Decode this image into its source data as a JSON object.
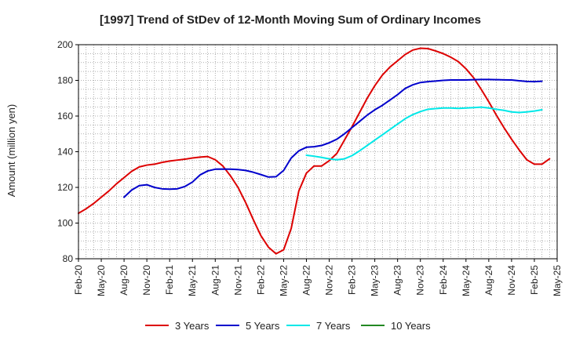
{
  "chart_data": {
    "type": "line",
    "title": "[1997]  Trend of StDev of 12-Month Moving Sum of Ordinary Incomes",
    "xlabel": "",
    "ylabel": "Amount (million yen)",
    "ylim": [
      80,
      200
    ],
    "yticks": [
      80,
      100,
      120,
      140,
      160,
      180,
      200
    ],
    "x_tick_labels": [
      "Feb-20",
      "May-20",
      "Aug-20",
      "Nov-20",
      "Feb-21",
      "May-21",
      "Aug-21",
      "Nov-21",
      "Feb-22",
      "May-22",
      "Aug-22",
      "Nov-22",
      "Feb-23",
      "May-23",
      "Aug-23",
      "Nov-23",
      "Feb-24",
      "May-24",
      "Aug-24",
      "Nov-24",
      "Feb-25",
      "May-25"
    ],
    "x_start": "Feb-20",
    "x_months": 63,
    "grid": true,
    "legend_position": "bottom",
    "series": [
      {
        "name": "3 Years",
        "color": "#dd0000",
        "start_index": 0,
        "values": [
          105.5,
          108,
          111,
          114.5,
          118,
          122,
          125.5,
          129,
          131.5,
          132.5,
          133,
          134,
          134.8,
          135.3,
          135.8,
          136.5,
          137,
          137.3,
          135.5,
          132,
          126.5,
          120,
          111.5,
          102,
          93,
          86.5,
          82.8,
          85,
          97,
          118,
          128,
          132,
          132,
          135,
          139,
          146.5,
          154,
          162,
          170,
          177,
          183,
          187.5,
          191,
          194.5,
          197,
          198,
          197.8,
          196.5,
          195,
          193,
          190.5,
          186.5,
          181.5,
          175,
          168,
          160.5,
          153.5,
          147,
          141,
          135.5,
          133,
          133,
          136
        ]
      },
      {
        "name": "5 Years",
        "color": "#0000cc",
        "start_index": 6,
        "values": [
          114.5,
          118.5,
          121,
          121.5,
          120,
          119.2,
          119,
          119.2,
          120.5,
          123,
          127,
          129.2,
          130.2,
          130.3,
          130.2,
          130,
          129.5,
          128.5,
          127.2,
          125.8,
          126,
          129.5,
          136.5,
          140.5,
          142.5,
          142.8,
          143.5,
          145,
          147,
          150,
          153.5,
          157,
          160.5,
          163.5,
          166,
          169,
          172,
          175.5,
          177.5,
          178.8,
          179.3,
          179.6,
          180,
          180.2,
          180.2,
          180.2,
          180.4,
          180.5,
          180.5,
          180.4,
          180.3,
          180.2,
          179.8,
          179.4,
          179.3,
          179.5
        ]
      },
      {
        "name": "7 Years",
        "color": "#00e8e8",
        "start_index": 30,
        "values": [
          138,
          137.5,
          136.8,
          136,
          135.5,
          136,
          137.8,
          140.5,
          143.5,
          146.5,
          149.5,
          152.5,
          155.5,
          158.5,
          160.8,
          162.5,
          163.8,
          164.2,
          164.5,
          164.5,
          164.3,
          164.5,
          164.7,
          165,
          164.5,
          163.8,
          163.2,
          162.3,
          162,
          162.3,
          162.8,
          163.5
        ]
      },
      {
        "name": "10 Years",
        "color": "#228822",
        "start_index": 0,
        "values": []
      }
    ]
  }
}
